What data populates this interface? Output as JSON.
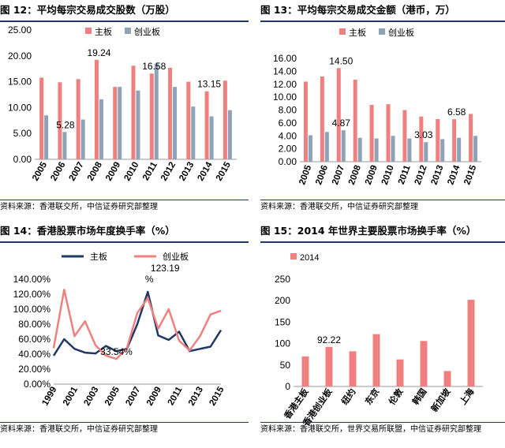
{
  "colors": {
    "main_bar": "#f08080",
    "gem_bar": "#8ea2b8",
    "main_line": "#1f3864",
    "gem_line": "#f08080",
    "rule": "#1f3864"
  },
  "panels": [
    {
      "title": "图 12：平均每宗交易成交股数（万股）",
      "source": "资料来源：香港联交所，中信证券研究部整理"
    },
    {
      "title": "图 13：平均每宗交易成交金额（港币，万）",
      "source": "资料来源：香港联交所，中信证券研究部整理"
    },
    {
      "title": "图 14：香港股票市场年度换手率（%）",
      "source": "资料来源：香港联交所，中信证券研究部整理"
    },
    {
      "title": "图 15：2014 年世界主要股票市场换手率（%）",
      "source": "资料来源：香港联交所，世界交易所联盟，中信证券研究部整理"
    }
  ],
  "chart_data": [
    {
      "type": "bar",
      "categories": [
        "2005",
        "2006",
        "2007",
        "2008",
        "2009",
        "2010",
        "2011",
        "2012",
        "2013",
        "2014",
        "2015"
      ],
      "series": [
        {
          "name": "主板",
          "values": [
            15.8,
            14.9,
            15.5,
            19.24,
            14.0,
            18.1,
            16.58,
            17.7,
            15.0,
            13.15,
            15.2
          ]
        },
        {
          "name": "创业板",
          "values": [
            8.5,
            5.28,
            7.7,
            11.6,
            14.0,
            13.3,
            18.5,
            14.0,
            10.2,
            8.3,
            9.5
          ]
        }
      ],
      "ylim": [
        0,
        25
      ],
      "yticks": [
        "0.00",
        "5.00",
        "10.00",
        "15.00",
        "20.00",
        "25.00"
      ],
      "annotations": [
        {
          "text": "19.24",
          "category": "2008",
          "value": 19.24
        },
        {
          "text": "5.28",
          "category": "2006",
          "value": 5.28
        },
        {
          "text": "16.58",
          "category": "2011",
          "value": 16.58
        },
        {
          "text": "13.15",
          "category": "2014",
          "value": 13.15
        }
      ],
      "legend": "top"
    },
    {
      "type": "bar",
      "categories": [
        "2005",
        "2006",
        "2007",
        "2008",
        "2009",
        "2010",
        "2011",
        "2012",
        "2013",
        "2014",
        "2015"
      ],
      "series": [
        {
          "name": "主板",
          "values": [
            12.4,
            13.2,
            14.5,
            12.7,
            8.8,
            8.9,
            8.0,
            7.0,
            6.6,
            6.58,
            7.4
          ]
        },
        {
          "name": "创业板",
          "values": [
            4.1,
            4.6,
            4.87,
            3.7,
            3.6,
            4.0,
            3.6,
            3.03,
            3.5,
            3.7,
            4.0
          ]
        }
      ],
      "ylim": [
        0,
        16
      ],
      "yticks": [
        "0.00",
        "2.00",
        "4.00",
        "6.00",
        "8.00",
        "10.00",
        "12.00",
        "14.00",
        "16.00"
      ],
      "annotations": [
        {
          "text": "14.50",
          "category": "2007",
          "value": 14.5
        },
        {
          "text": "4.87",
          "category": "2007",
          "value": 4.87
        },
        {
          "text": "3.03",
          "category": "2012",
          "value": 3.03
        },
        {
          "text": "6.58",
          "category": "2014",
          "value": 6.58
        }
      ],
      "legend": "top"
    },
    {
      "type": "line",
      "x": [
        1999,
        2000,
        2001,
        2002,
        2003,
        2004,
        2005,
        2006,
        2007,
        2008,
        2009,
        2010,
        2011,
        2012,
        2013,
        2014,
        2015
      ],
      "xticks": [
        "1999",
        "2001",
        "2003",
        "2005",
        "2007",
        "2009",
        "2011",
        "2013",
        "2015"
      ],
      "series": [
        {
          "name": "主板",
          "values": [
            38,
            60,
            47,
            42,
            41,
            51,
            44,
            47,
            80,
            123.19,
            65,
            59,
            70,
            44,
            47,
            50,
            72
          ]
        },
        {
          "name": "创业板",
          "values": [
            48,
            126,
            64,
            84,
            52,
            38,
            33.54,
            48,
            95,
            115,
            74,
            100,
            58,
            45,
            64,
            93,
            98
          ]
        }
      ],
      "ylim": [
        0,
        140
      ],
      "yticks": [
        "0.00%",
        "20.00%",
        "40.00%",
        "60.00%",
        "80.00%",
        "100.00%",
        "120.00%",
        "140.00%"
      ],
      "annotations": [
        {
          "text": "33.54%",
          "x": 2005,
          "value": 33.54
        },
        {
          "text": "123.19\n%",
          "x": 2008,
          "value": 123.19
        }
      ],
      "legend": "top"
    },
    {
      "type": "bar",
      "categories": [
        "香港主板",
        "香港创业板",
        "纽约",
        "东京",
        "伦敦",
        "韩国",
        "新加坡",
        "上海"
      ],
      "series": [
        {
          "name": "2014",
          "values": [
            70,
            92.22,
            82,
            122,
            63,
            106,
            36,
            202
          ]
        }
      ],
      "ylim": [
        0,
        250
      ],
      "yticks": [
        "0",
        "50",
        "100",
        "150",
        "200",
        "250"
      ],
      "annotations": [
        {
          "text": "92.22",
          "category": "香港创业板",
          "value": 92.22
        }
      ],
      "legend": "top-left"
    }
  ]
}
